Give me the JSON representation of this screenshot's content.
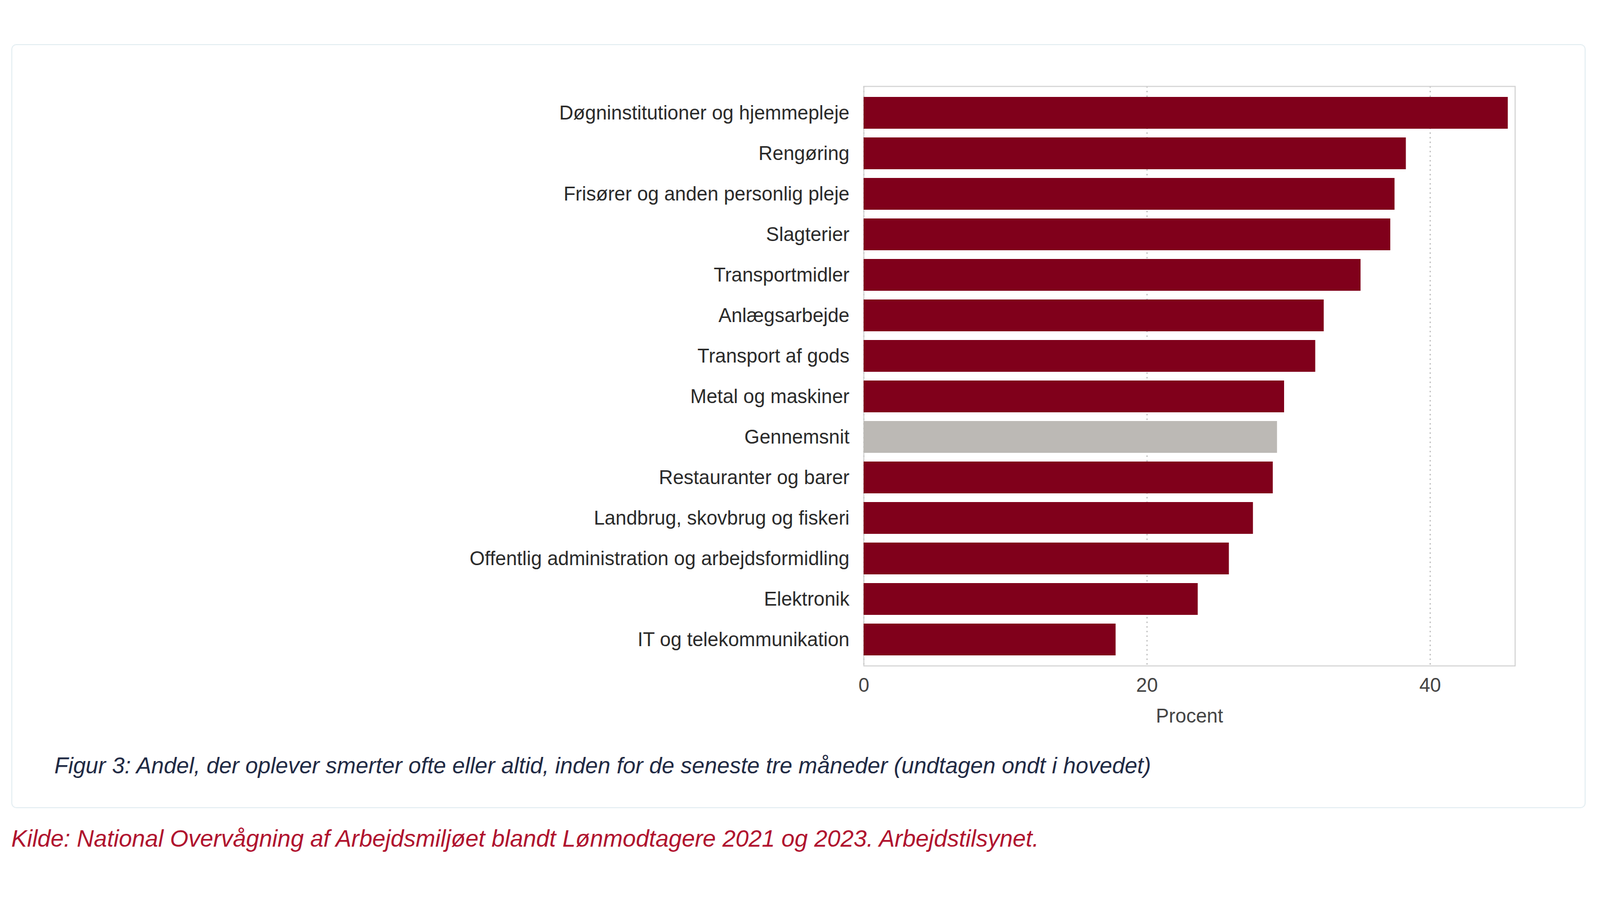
{
  "chart_data": {
    "type": "bar",
    "orientation": "horizontal",
    "categories": [
      "Døgninstitutioner og hjemmepleje",
      "Rengøring",
      "Frisører og anden personlig pleje",
      "Slagterier",
      "Transportmidler",
      "Anlægsarbejde",
      "Transport af gods",
      "Metal og maskiner",
      "Gennemsnit",
      "Restauranter og barer",
      "Landbrug, skovbrug og fiskeri",
      "Offentlig administration og arbejdsformidling",
      "Elektronik",
      "IT og telekommunikation"
    ],
    "values": [
      45.5,
      38.3,
      37.5,
      37.2,
      35.1,
      32.5,
      31.9,
      29.7,
      29.2,
      28.9,
      27.5,
      25.8,
      23.6,
      17.8
    ],
    "colors": [
      "#80001b",
      "#80001b",
      "#80001b",
      "#80001b",
      "#80001b",
      "#80001b",
      "#80001b",
      "#80001b",
      "#bcb9b5",
      "#80001b",
      "#80001b",
      "#80001b",
      "#80001b",
      "#80001b"
    ],
    "xlim": [
      0,
      46
    ],
    "xticks": [
      0,
      20,
      40
    ],
    "x_label": "Procent",
    "grid": true,
    "caption": "Figur 3: Andel, der oplever smerter ofte eller altid, inden for de seneste tre måneder (undtagen ondt i hovedet)",
    "source": "Kilde: National Overvågning af Arbejdsmiljøet blandt Lønmodtagere 2021 og 2023. Arbejdstilsynet."
  }
}
